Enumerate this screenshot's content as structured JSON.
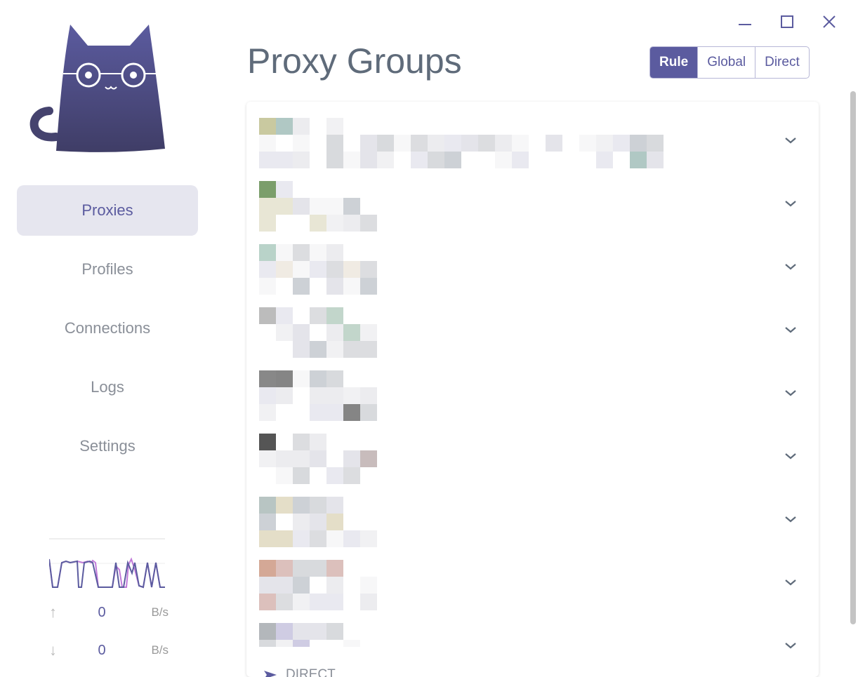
{
  "window": {
    "controls": [
      "minimize-icon",
      "maximize-icon",
      "close-icon"
    ]
  },
  "sidebar": {
    "items": [
      {
        "label": "Proxies",
        "active": true
      },
      {
        "label": "Profiles"
      },
      {
        "label": "Connections"
      },
      {
        "label": "Logs"
      },
      {
        "label": "Settings"
      }
    ],
    "traffic": {
      "upload_value": "0",
      "upload_unit": "B/s",
      "download_value": "0",
      "download_unit": "B/s"
    }
  },
  "header": {
    "title": "Proxy Groups",
    "modes": [
      {
        "label": "Rule",
        "selected": true
      },
      {
        "label": "Global"
      },
      {
        "label": "Direct"
      }
    ]
  },
  "groups": {
    "count_visible": 9,
    "last_group_now": "DIRECT"
  },
  "colors": {
    "accent": "#5b5b9f",
    "title": "#5f6b7a",
    "upload_line": "#c17ad9",
    "download_line": "#5b5b9f"
  }
}
